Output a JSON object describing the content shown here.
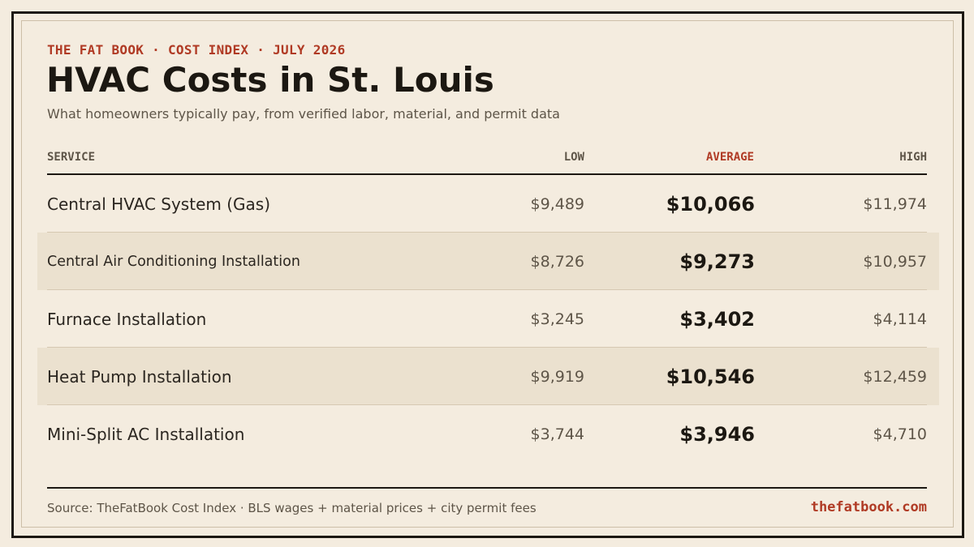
{
  "kicker": "THE FAT BOOK · COST INDEX · JULY 2026",
  "title": "HVAC Costs in St. Louis",
  "subtitle": "What homeowners typically pay, from verified labor, material, and permit data",
  "table": {
    "headers": {
      "service": "SERVICE",
      "low": "LOW",
      "average": "AVERAGE",
      "high": "HIGH"
    },
    "rows": [
      {
        "service": "Central HVAC System (Gas)",
        "low": "$9,489",
        "average": "$10,066",
        "high": "$11,974"
      },
      {
        "service": "Central Air Conditioning Installation",
        "low": "$8,726",
        "average": "$9,273",
        "high": "$10,957"
      },
      {
        "service": "Furnace Installation",
        "low": "$3,245",
        "average": "$3,402",
        "high": "$4,114"
      },
      {
        "service": "Heat Pump Installation",
        "low": "$9,919",
        "average": "$10,546",
        "high": "$12,459"
      },
      {
        "service": "Mini-Split AC Installation",
        "low": "$3,744",
        "average": "$3,946",
        "high": "$4,710"
      }
    ]
  },
  "footer": {
    "source": "Source: TheFatBook Cost Index · BLS wages + material prices + city permit fees",
    "site": "thefatbook.com"
  },
  "colors": {
    "accent": "#b03a24",
    "background": "#f4ecdf",
    "ink": "#1c1812",
    "shaded_row": "#ebe1cf"
  }
}
